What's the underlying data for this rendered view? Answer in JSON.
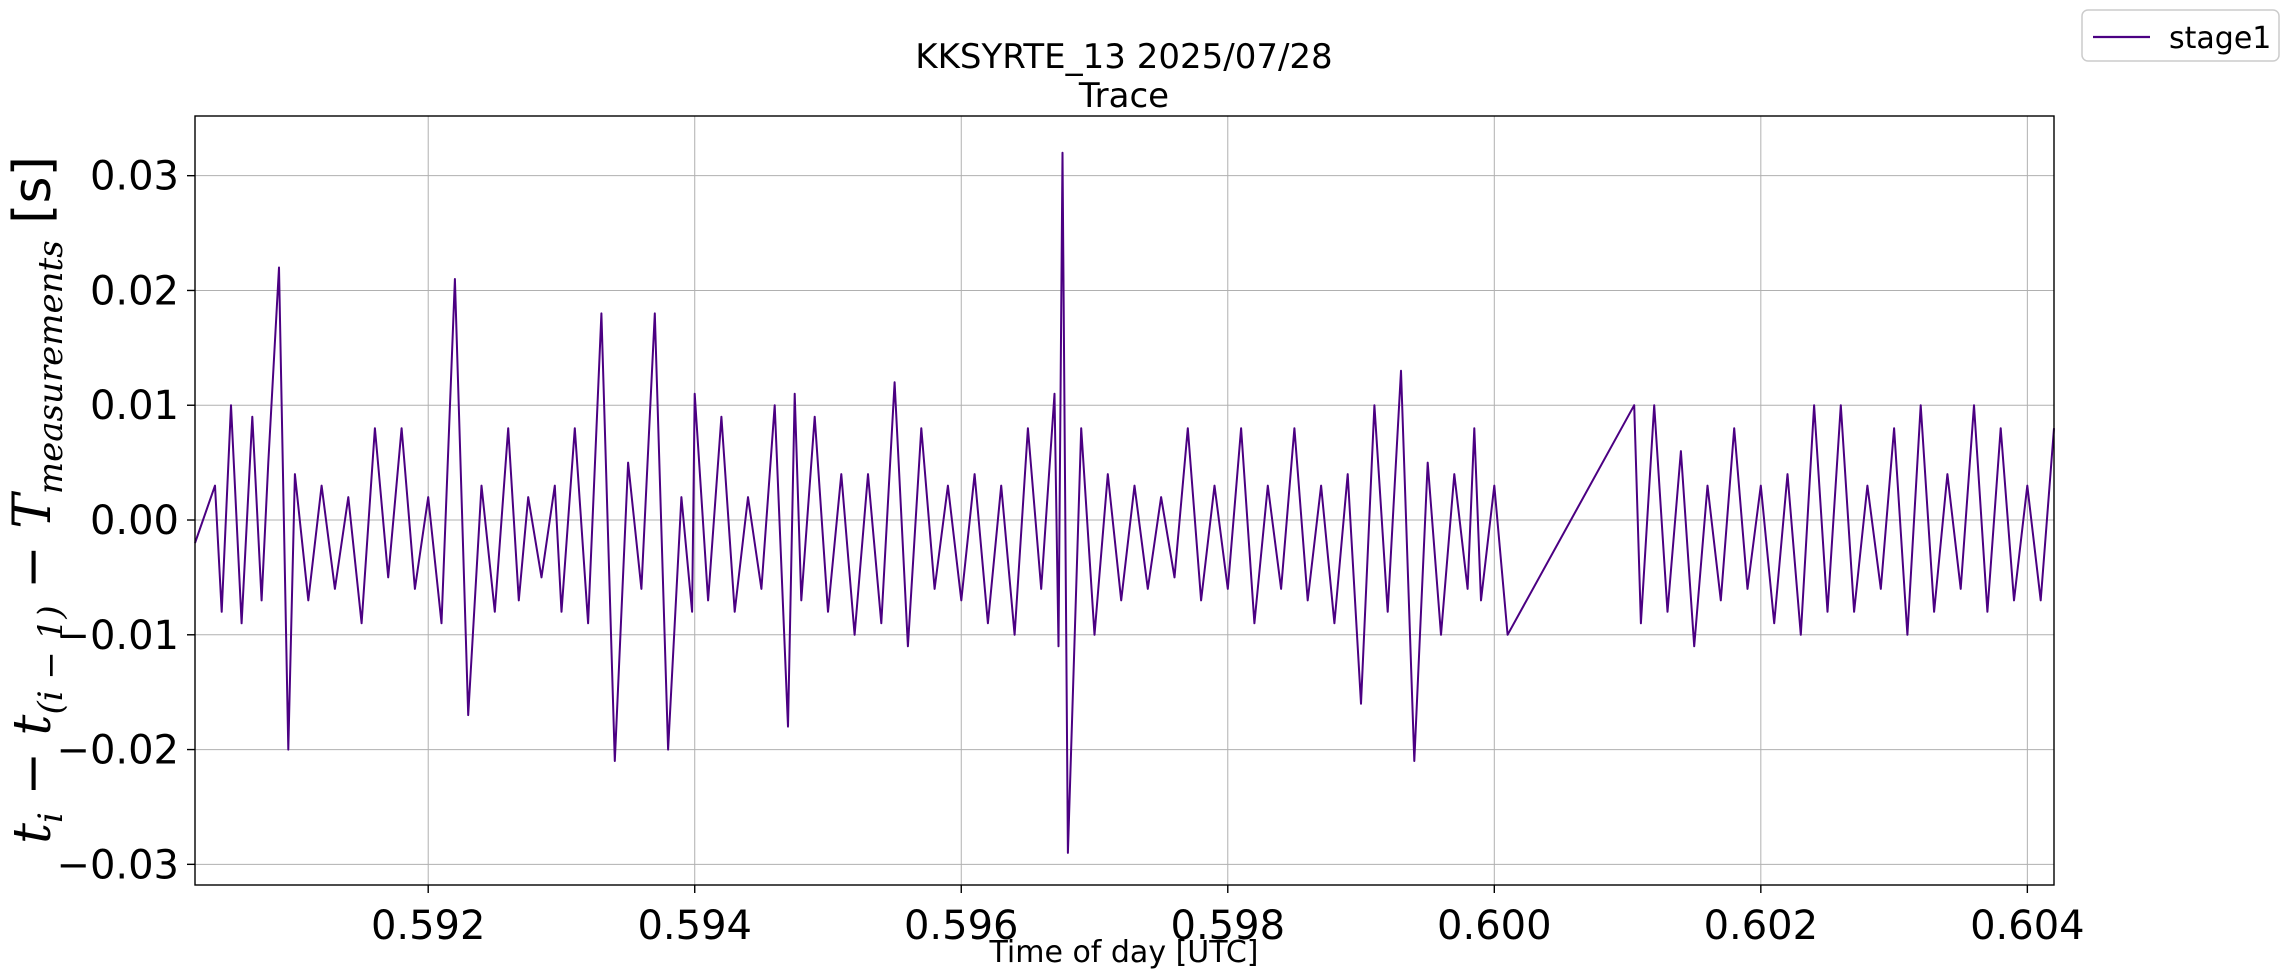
{
  "chart_data": {
    "type": "line",
    "title": "KKSYRTE_13 2025/07/28",
    "subtitle": "Trace",
    "xlabel": "Time of day [UTC]",
    "ylabel": "t_i − t_(i−1) − T_measurements [s]",
    "ylabel_parts": {
      "t1": "t",
      "sub1": "i",
      "minus1": " − ",
      "t2": "t",
      "sub2": "(i − 1)",
      "minus2": " − ",
      "T": "T",
      "sub3": "measurements",
      "unit": " [s]"
    },
    "xlim": [
      0.59025,
      0.6042
    ],
    "ylim": [
      -0.0318,
      0.0352
    ],
    "xticks": [
      {
        "value": 0.592,
        "label": "0.592"
      },
      {
        "value": 0.594,
        "label": "0.594"
      },
      {
        "value": 0.596,
        "label": "0.596"
      },
      {
        "value": 0.598,
        "label": "0.598"
      },
      {
        "value": 0.6,
        "label": "0.600"
      },
      {
        "value": 0.602,
        "label": "0.602"
      },
      {
        "value": 0.604,
        "label": "0.604"
      }
    ],
    "yticks": [
      {
        "value": 0.03,
        "label": "0.03"
      },
      {
        "value": 0.02,
        "label": "0.02"
      },
      {
        "value": 0.01,
        "label": "0.01"
      },
      {
        "value": 0.0,
        "label": "0.00"
      },
      {
        "value": -0.01,
        "label": "−0.01"
      },
      {
        "value": -0.02,
        "label": "−0.02"
      },
      {
        "value": -0.03,
        "label": "−0.03"
      }
    ],
    "grid": true,
    "legend_position": "top-right-outside",
    "series": [
      {
        "name": "stage1",
        "color": "#4b0082",
        "x": [
          0.59025,
          0.5904,
          0.59045,
          0.59052,
          0.5906,
          0.59068,
          0.59075,
          0.5908,
          0.59088,
          0.59095,
          0.591,
          0.5911,
          0.5912,
          0.5913,
          0.5914,
          0.5915,
          0.5916,
          0.5917,
          0.5918,
          0.5919,
          0.592,
          0.5921,
          0.5922,
          0.5923,
          0.5924,
          0.5925,
          0.5926,
          0.59268,
          0.59275,
          0.59285,
          0.59295,
          0.593,
          0.5931,
          0.5932,
          0.5933,
          0.5934,
          0.5935,
          0.5936,
          0.5937,
          0.5938,
          0.5939,
          0.59398,
          0.594,
          0.5941,
          0.5942,
          0.5943,
          0.5944,
          0.5945,
          0.5946,
          0.5947,
          0.59475,
          0.5948,
          0.5949,
          0.595,
          0.5951,
          0.5952,
          0.5953,
          0.5954,
          0.5955,
          0.5956,
          0.5957,
          0.5958,
          0.5959,
          0.596,
          0.5961,
          0.5962,
          0.5963,
          0.5964,
          0.5965,
          0.5966,
          0.5967,
          0.59673,
          0.59676,
          0.5968,
          0.5969,
          0.597,
          0.5971,
          0.5972,
          0.5973,
          0.5974,
          0.5975,
          0.5976,
          0.5977,
          0.5978,
          0.5979,
          0.598,
          0.5981,
          0.5982,
          0.5983,
          0.5984,
          0.5985,
          0.5986,
          0.5987,
          0.5988,
          0.5989,
          0.599,
          0.5991,
          0.5992,
          0.5993,
          0.5994,
          0.5995,
          0.5996,
          0.5997,
          0.5998,
          0.59985,
          0.5999,
          0.6,
          0.6001,
          0.60105,
          0.6011,
          0.6012,
          0.6013,
          0.6014,
          0.6015,
          0.6016,
          0.6017,
          0.6018,
          0.6019,
          0.602,
          0.6021,
          0.6022,
          0.6023,
          0.6024,
          0.6025,
          0.6026,
          0.6027,
          0.6028,
          0.6029,
          0.603,
          0.6031,
          0.6032,
          0.6033,
          0.6034,
          0.6035,
          0.6036,
          0.6037,
          0.6038,
          0.6039,
          0.604,
          0.6041,
          0.6042
        ],
        "y": [
          -0.002,
          0.003,
          -0.008,
          0.01,
          -0.009,
          0.009,
          -0.007,
          0.005,
          0.022,
          -0.02,
          0.004,
          -0.007,
          0.003,
          -0.006,
          0.002,
          -0.009,
          0.008,
          -0.005,
          0.008,
          -0.006,
          0.002,
          -0.009,
          0.021,
          -0.017,
          0.003,
          -0.008,
          0.008,
          -0.007,
          0.002,
          -0.005,
          0.003,
          -0.008,
          0.008,
          -0.009,
          0.018,
          -0.021,
          0.005,
          -0.006,
          0.018,
          -0.02,
          0.002,
          -0.008,
          0.011,
          -0.007,
          0.009,
          -0.008,
          0.002,
          -0.006,
          0.01,
          -0.018,
          0.011,
          -0.007,
          0.009,
          -0.008,
          0.004,
          -0.01,
          0.004,
          -0.009,
          0.012,
          -0.011,
          0.008,
          -0.006,
          0.003,
          -0.007,
          0.004,
          -0.009,
          0.003,
          -0.01,
          0.008,
          -0.006,
          0.011,
          -0.011,
          0.032,
          -0.029,
          0.008,
          -0.01,
          0.004,
          -0.007,
          0.003,
          -0.006,
          0.002,
          -0.005,
          0.008,
          -0.007,
          0.003,
          -0.006,
          0.008,
          -0.009,
          0.003,
          -0.006,
          0.008,
          -0.007,
          0.003,
          -0.009,
          0.004,
          -0.016,
          0.01,
          -0.008,
          0.013,
          -0.021,
          0.005,
          -0.01,
          0.004,
          -0.006,
          0.008,
          -0.007,
          0.003,
          -0.01,
          0.01,
          -0.009,
          0.01,
          -0.008,
          0.006,
          -0.011,
          0.003,
          -0.007,
          0.008,
          -0.006,
          0.003,
          -0.009,
          0.004,
          -0.01,
          0.01,
          -0.008,
          0.01,
          -0.008,
          0.003,
          -0.006,
          0.008,
          -0.01,
          0.01,
          -0.008,
          0.004,
          -0.006,
          0.01,
          -0.008,
          0.008,
          -0.007,
          0.003,
          -0.007,
          0.008
        ]
      }
    ]
  }
}
